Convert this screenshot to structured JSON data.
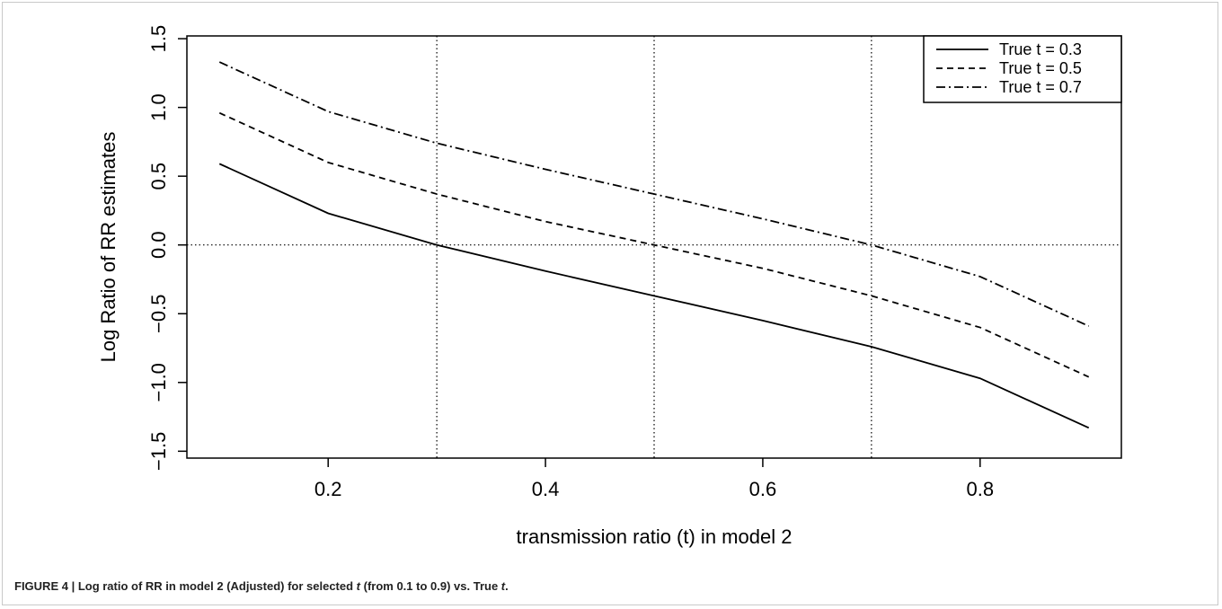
{
  "chart_data": {
    "type": "line",
    "xlabel": "transmission ratio (t) in model 2",
    "ylabel": "Log Ratio of RR estimates",
    "xlim": [
      0.07,
      0.93
    ],
    "ylim": [
      -1.55,
      1.52
    ],
    "xticks": [
      0.2,
      0.4,
      0.6,
      0.8
    ],
    "xtick_labels": [
      "0.2",
      "0.4",
      "0.6",
      "0.8"
    ],
    "yticks": [
      -1.5,
      -1.0,
      -0.5,
      0.0,
      0.5,
      1.0,
      1.5
    ],
    "ytick_labels": [
      "−1.5",
      "−1.0",
      "−0.5",
      "0.0",
      "0.5",
      "1.0",
      "1.5"
    ],
    "reference_lines": {
      "vertical": [
        0.3,
        0.5,
        0.7
      ],
      "horizontal": [
        0.0
      ],
      "style": "dotted"
    },
    "grid": false,
    "legend_position": "top-right",
    "x": [
      0.1,
      0.2,
      0.3,
      0.4,
      0.5,
      0.6,
      0.7,
      0.8,
      0.9
    ],
    "series": [
      {
        "name": "True t = 0.3",
        "style": "solid",
        "values": [
          0.59,
          0.23,
          0.0,
          -0.19,
          -0.37,
          -0.55,
          -0.74,
          -0.97,
          -1.33
        ]
      },
      {
        "name": "True t = 0.5",
        "style": "dashed",
        "values": [
          0.96,
          0.6,
          0.37,
          0.17,
          0.0,
          -0.17,
          -0.37,
          -0.6,
          -0.96
        ]
      },
      {
        "name": "True t = 0.7",
        "style": "dashdot",
        "values": [
          1.33,
          0.97,
          0.74,
          0.55,
          0.37,
          0.19,
          0.0,
          -0.23,
          -0.59
        ]
      }
    ]
  },
  "caption": {
    "prefix": "FIGURE 4 | Log ratio of RR in model 2 (Adjusted) for selected ",
    "italic": "t",
    "middle": " (from 0.1 to 0.9) vs. True ",
    "italic2": "t",
    "suffix": "."
  },
  "colors": {
    "line": "#000000",
    "frame": "#c9c9c9",
    "caption": "#222222"
  }
}
